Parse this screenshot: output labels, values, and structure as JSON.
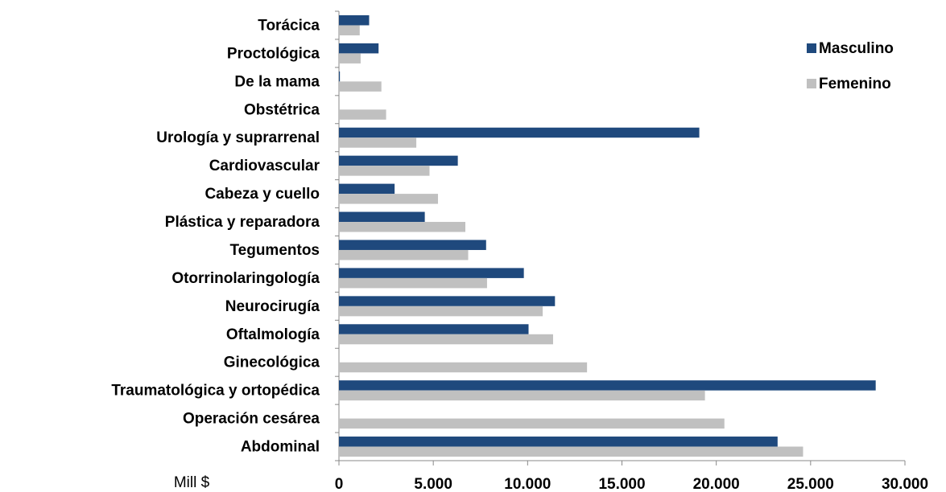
{
  "chart_data": {
    "type": "bar",
    "orientation": "horizontal",
    "categories": [
      "Torácica",
      "Proctológica",
      "De la mama",
      "Obstétrica",
      "Urología y suprarrenal",
      "Cardiovascular",
      "Cabeza y cuello",
      "Plástica y reparadora",
      "Tegumentos",
      "Otorrinolaringología",
      "Neurocirugía",
      "Oftalmología",
      "Ginecológica",
      "Traumatológica y ortopédica",
      "Operación cesárea",
      "Abdominal"
    ],
    "series": [
      {
        "name": "Masculino",
        "color": "#1f497d",
        "values": [
          1600,
          2100,
          50,
          0,
          19100,
          6300,
          2950,
          4550,
          7800,
          9800,
          11450,
          10050,
          0,
          28450,
          0,
          23250
        ]
      },
      {
        "name": "Femenino",
        "color": "#c0c0c0",
        "values": [
          1100,
          1150,
          2250,
          2500,
          4100,
          4800,
          5250,
          6700,
          6850,
          7850,
          10800,
          11350,
          13150,
          19400,
          20430,
          24600
        ]
      }
    ],
    "xlabel": "Mill $",
    "xlim": [
      0,
      30000
    ],
    "xticks": [
      0,
      {
        "value": 5000,
        "label": "5.000"
      },
      {
        "value": 10000,
        "label": "10.000"
      },
      {
        "value": 15000,
        "label": "15.000"
      },
      {
        "value": 20000,
        "label": "20.000"
      },
      {
        "value": 25000,
        "label": "25.000"
      },
      {
        "value": 30000,
        "label": "30.000"
      }
    ],
    "legend": "right"
  }
}
